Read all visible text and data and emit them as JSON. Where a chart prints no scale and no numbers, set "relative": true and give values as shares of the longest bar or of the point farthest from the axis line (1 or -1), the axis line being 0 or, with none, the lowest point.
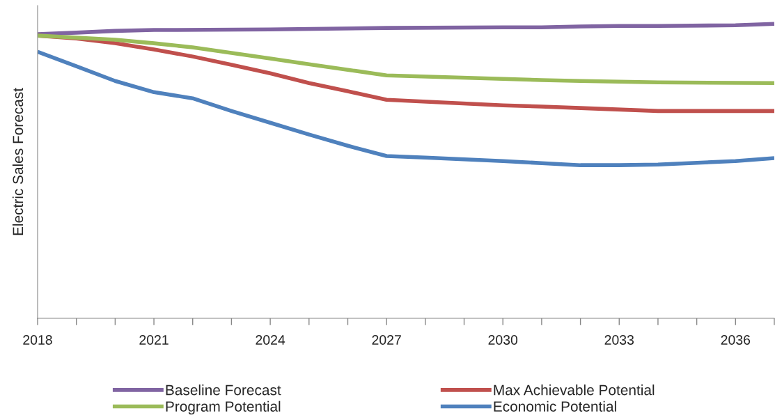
{
  "chart_data": {
    "type": "line",
    "relative": true,
    "ylabel": "Electric Sales Forecast",
    "xlim": [
      2018,
      2037
    ],
    "xticks": [
      2018,
      {
        "value": 2019,
        "label": null
      },
      {
        "value": 2020,
        "label": null
      },
      2021,
      {
        "value": 2022,
        "label": null
      },
      {
        "value": 2023,
        "label": null
      },
      2024,
      {
        "value": 2025,
        "label": null
      },
      {
        "value": 2026,
        "label": null
      },
      2027,
      {
        "value": 2028,
        "label": null
      },
      {
        "value": 2029,
        "label": null
      },
      2030,
      {
        "value": 2031,
        "label": null
      },
      {
        "value": 2032,
        "label": null
      },
      2033,
      {
        "value": 2034,
        "label": null
      },
      {
        "value": 2035,
        "label": null
      },
      2036,
      {
        "value": 2037,
        "label": null
      }
    ],
    "tick_labels": "x",
    "grid": false,
    "legend": "bottom",
    "marker": "none",
    "line_style": "solid",
    "series": [
      {
        "name": "Baseline Forecast",
        "color": "#8064a2",
        "x": [
          2018,
          2019,
          2020,
          2021,
          2024,
          2027,
          2030,
          2031,
          2032,
          2033,
          2034,
          2036,
          2037
        ],
        "values": [
          0.965,
          0.97,
          0.976,
          0.979,
          0.981,
          0.986,
          0.988,
          0.988,
          0.991,
          0.993,
          0.993,
          0.995,
          1.0
        ]
      },
      {
        "name": "Max Achievable Potential",
        "color": "#c0504d",
        "x": [
          2018,
          2019,
          2020,
          2021,
          2022,
          2023,
          2024,
          2025,
          2026,
          2027,
          2030,
          2031,
          2032,
          2034,
          2036,
          2037
        ],
        "values": [
          0.96,
          0.95,
          0.934,
          0.913,
          0.889,
          0.861,
          0.832,
          0.799,
          0.771,
          0.742,
          0.723,
          0.719,
          0.714,
          0.704,
          0.704,
          0.704
        ]
      },
      {
        "name": "Program Potential",
        "color": "#9bbb59",
        "x": [
          2018,
          2020,
          2021,
          2022,
          2023,
          2024,
          2025,
          2026,
          2027,
          2030,
          2031,
          2032,
          2034,
          2037
        ],
        "values": [
          0.96,
          0.946,
          0.934,
          0.92,
          0.901,
          0.882,
          0.863,
          0.844,
          0.825,
          0.813,
          0.809,
          0.806,
          0.801,
          0.799
        ]
      },
      {
        "name": "Economic Potential",
        "color": "#4f81bd",
        "x": [
          2018,
          2019,
          2020,
          2021,
          2022,
          2023,
          2024,
          2025,
          2026,
          2027,
          2028,
          2030,
          2031,
          2032,
          2033,
          2034,
          2036,
          2037
        ],
        "values": [
          0.905,
          0.856,
          0.806,
          0.768,
          0.747,
          0.704,
          0.664,
          0.624,
          0.586,
          0.551,
          0.546,
          0.534,
          0.527,
          0.52,
          0.52,
          0.522,
          0.534,
          0.544
        ]
      }
    ]
  }
}
